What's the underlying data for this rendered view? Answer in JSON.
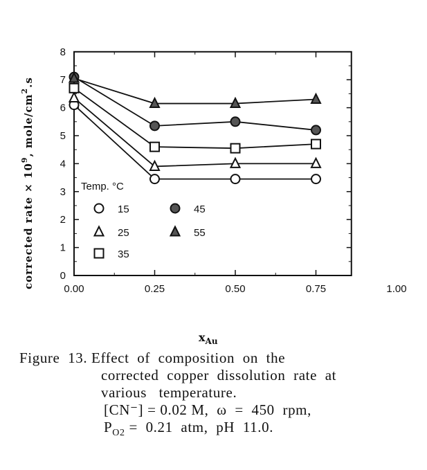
{
  "chart_data": {
    "type": "line",
    "title": "",
    "xlabel": {
      "main": "x",
      "sub": "Au"
    },
    "ylabel": {
      "pre": "corrected  rate  × 10",
      "sup": "9",
      "mid": ",   mole/cm",
      "sup2": "2",
      "post": ".s"
    },
    "xlim": [
      0,
      0.86
    ],
    "ylim": [
      0,
      8
    ],
    "x_ticks": [
      "0.00",
      "0.25",
      "0.50",
      "0.75",
      "1.00"
    ],
    "y_ticks": [
      "0",
      "1",
      "2",
      "3",
      "4",
      "5",
      "6",
      "7",
      "8"
    ],
    "grid": false,
    "legend": {
      "title": "Temp. °C",
      "placement": "bottom-left"
    },
    "x": [
      0.0,
      0.25,
      0.5,
      0.75
    ],
    "series": [
      {
        "name": "15",
        "marker": "open-circle",
        "values": [
          6.1,
          3.45,
          3.45,
          3.45
        ]
      },
      {
        "name": "25",
        "marker": "open-triangle",
        "values": [
          6.35,
          3.9,
          4.0,
          4.0
        ]
      },
      {
        "name": "35",
        "marker": "open-square",
        "values": [
          6.7,
          4.6,
          4.55,
          4.7
        ]
      },
      {
        "name": "45",
        "marker": "filled-circle",
        "values": [
          7.1,
          5.35,
          5.5,
          5.2
        ]
      },
      {
        "name": "55",
        "marker": "filled-triangle",
        "values": [
          7.05,
          6.15,
          6.15,
          6.3
        ]
      }
    ],
    "colors": {
      "ink": "#111111",
      "fill": "#555555"
    }
  },
  "caption": {
    "line1": "Figure  13. Effect  of  composition  on  the",
    "line2": "corrected  copper  dissolution  rate  at",
    "line3": "various   temperature.",
    "line4": "[CN⁻] = 0.02 M,  ω  =  450  rpm,",
    "line5_pre": "P",
    "line5_sub": "O2",
    "line5_post": " =  0.21  atm,  pH  11.0."
  }
}
